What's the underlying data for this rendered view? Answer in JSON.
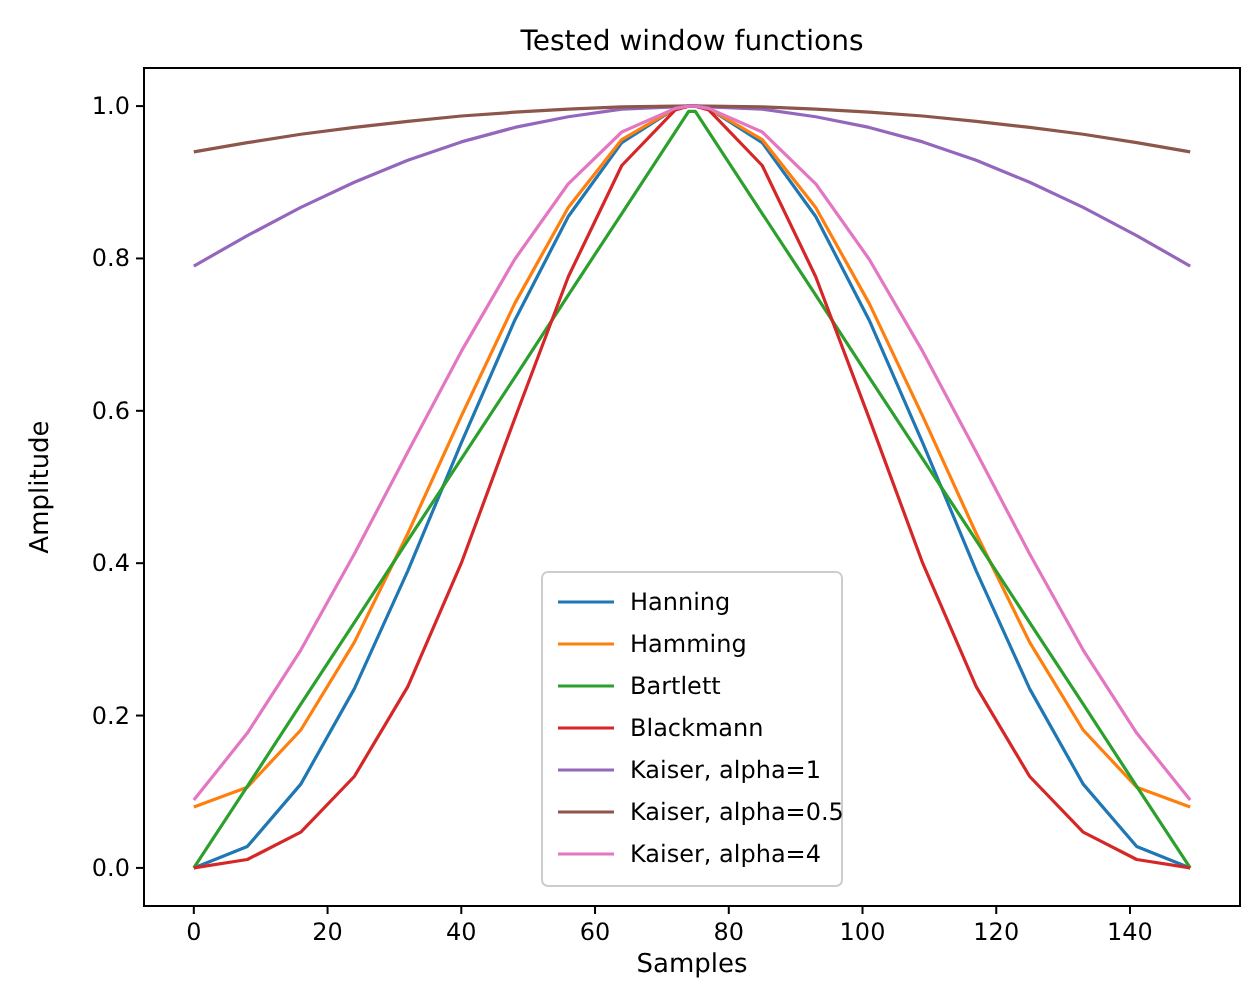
{
  "chart_data": {
    "type": "line",
    "title": "Tested window functions",
    "xlabel": "Samples",
    "ylabel": "Amplitude",
    "x": [
      0,
      8,
      16,
      24,
      32,
      40,
      48,
      56,
      64,
      72,
      74,
      75,
      77,
      85,
      93,
      101,
      109,
      117,
      125,
      133,
      141,
      149
    ],
    "series": [
      {
        "name": "Hanning",
        "color": "#1f77b4",
        "values": [
          0,
          0.028,
          0.11,
          0.235,
          0.39,
          0.558,
          0.719,
          0.855,
          0.952,
          0.997,
          1.0,
          1.0,
          0.997,
          0.952,
          0.855,
          0.719,
          0.558,
          0.39,
          0.235,
          0.11,
          0.028,
          0
        ]
      },
      {
        "name": "Hamming",
        "color": "#ff7f0e",
        "values": [
          0.08,
          0.106,
          0.181,
          0.296,
          0.439,
          0.593,
          0.741,
          0.867,
          0.956,
          0.997,
          1.0,
          1.0,
          0.997,
          0.956,
          0.867,
          0.741,
          0.593,
          0.439,
          0.296,
          0.181,
          0.106,
          0.08
        ]
      },
      {
        "name": "Bartlett",
        "color": "#2ca02c",
        "values": [
          0,
          0.107,
          0.215,
          0.322,
          0.43,
          0.537,
          0.644,
          0.752,
          0.859,
          0.966,
          0.993,
          0.993,
          0.966,
          0.859,
          0.752,
          0.644,
          0.537,
          0.43,
          0.322,
          0.215,
          0.107,
          0
        ]
      },
      {
        "name": "Blackmann",
        "color": "#d62728",
        "values": [
          0,
          0.011,
          0.047,
          0.12,
          0.238,
          0.4,
          0.59,
          0.776,
          0.922,
          0.995,
          1.0,
          1.0,
          0.995,
          0.922,
          0.776,
          0.59,
          0.4,
          0.238,
          0.12,
          0.047,
          0.011,
          0
        ]
      },
      {
        "name": "Kaiser, alpha=1",
        "color": "#9467bd",
        "values": [
          0.79,
          0.83,
          0.867,
          0.9,
          0.929,
          0.953,
          0.972,
          0.986,
          0.996,
          0.999,
          1.0,
          1.0,
          0.999,
          0.996,
          0.986,
          0.972,
          0.953,
          0.929,
          0.9,
          0.867,
          0.83,
          0.79
        ]
      },
      {
        "name": "Kaiser, alpha=0.5",
        "color": "#8c564b",
        "values": [
          0.94,
          0.952,
          0.963,
          0.972,
          0.98,
          0.987,
          0.992,
          0.996,
          0.999,
          1.0,
          1.0,
          1.0,
          1.0,
          0.999,
          0.996,
          0.992,
          0.987,
          0.98,
          0.972,
          0.963,
          0.952,
          0.94
        ]
      },
      {
        "name": "Kaiser, alpha=4",
        "color": "#e377c2",
        "values": [
          0.089,
          0.177,
          0.286,
          0.412,
          0.546,
          0.678,
          0.799,
          0.898,
          0.966,
          0.997,
          1.0,
          1.0,
          0.997,
          0.966,
          0.898,
          0.799,
          0.678,
          0.546,
          0.412,
          0.286,
          0.177,
          0.089
        ]
      }
    ],
    "xlim": [
      -7.45,
      156.45
    ],
    "xticks": [
      0,
      20,
      40,
      60,
      80,
      100,
      120,
      140
    ],
    "ylim": [
      -0.05,
      1.05
    ],
    "yticks": [
      {
        "value": 0,
        "label": "0.0"
      },
      {
        "value": 0.2,
        "label": "0.2"
      },
      {
        "value": 0.4,
        "label": "0.4"
      },
      {
        "value": 0.6,
        "label": "0.6"
      },
      {
        "value": 0.8,
        "label": "0.8"
      },
      {
        "value": 1.0,
        "label": "1.0"
      }
    ],
    "legend": "bottom",
    "grid": false,
    "marker": "none",
    "line_style": "solid"
  }
}
